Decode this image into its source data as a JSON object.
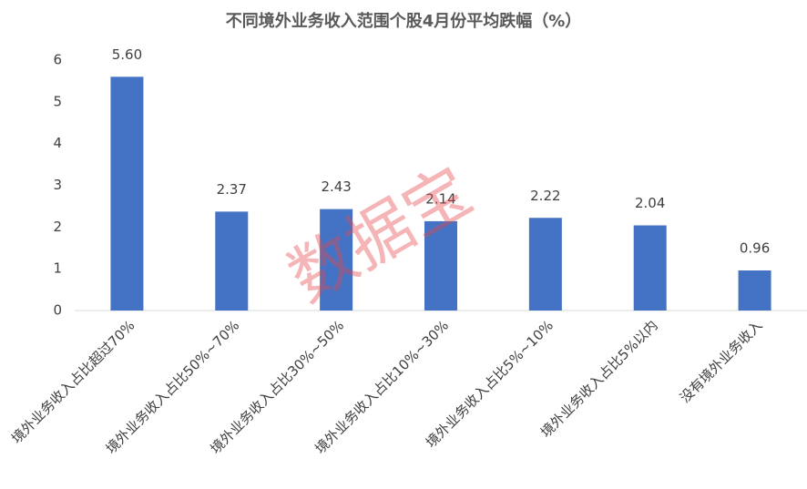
{
  "chart_data": {
    "type": "bar",
    "title": "不同境外业务收入范围个股4月份平均跌幅（%）",
    "categories": [
      "境外业务收入占比超过70%",
      "境外业务收入占比50%~70%",
      "境外业务收入占比30%~50%",
      "境外业务收入占比10%~30%",
      "境外业务收入占比5%~10%",
      "境外业务收入占比5%以内",
      "没有境外业务收入"
    ],
    "values": [
      5.6,
      2.37,
      2.43,
      2.14,
      2.22,
      2.04,
      0.96
    ],
    "value_labels": [
      "5.60",
      "2.37",
      "2.43",
      "2.14",
      "2.22",
      "2.04",
      "0.96"
    ],
    "color": "#4472c4",
    "ylim": [
      0,
      6
    ],
    "yticks": [
      0,
      1,
      2,
      3,
      4,
      5,
      6
    ],
    "grid": false,
    "watermark": "数据宝"
  }
}
